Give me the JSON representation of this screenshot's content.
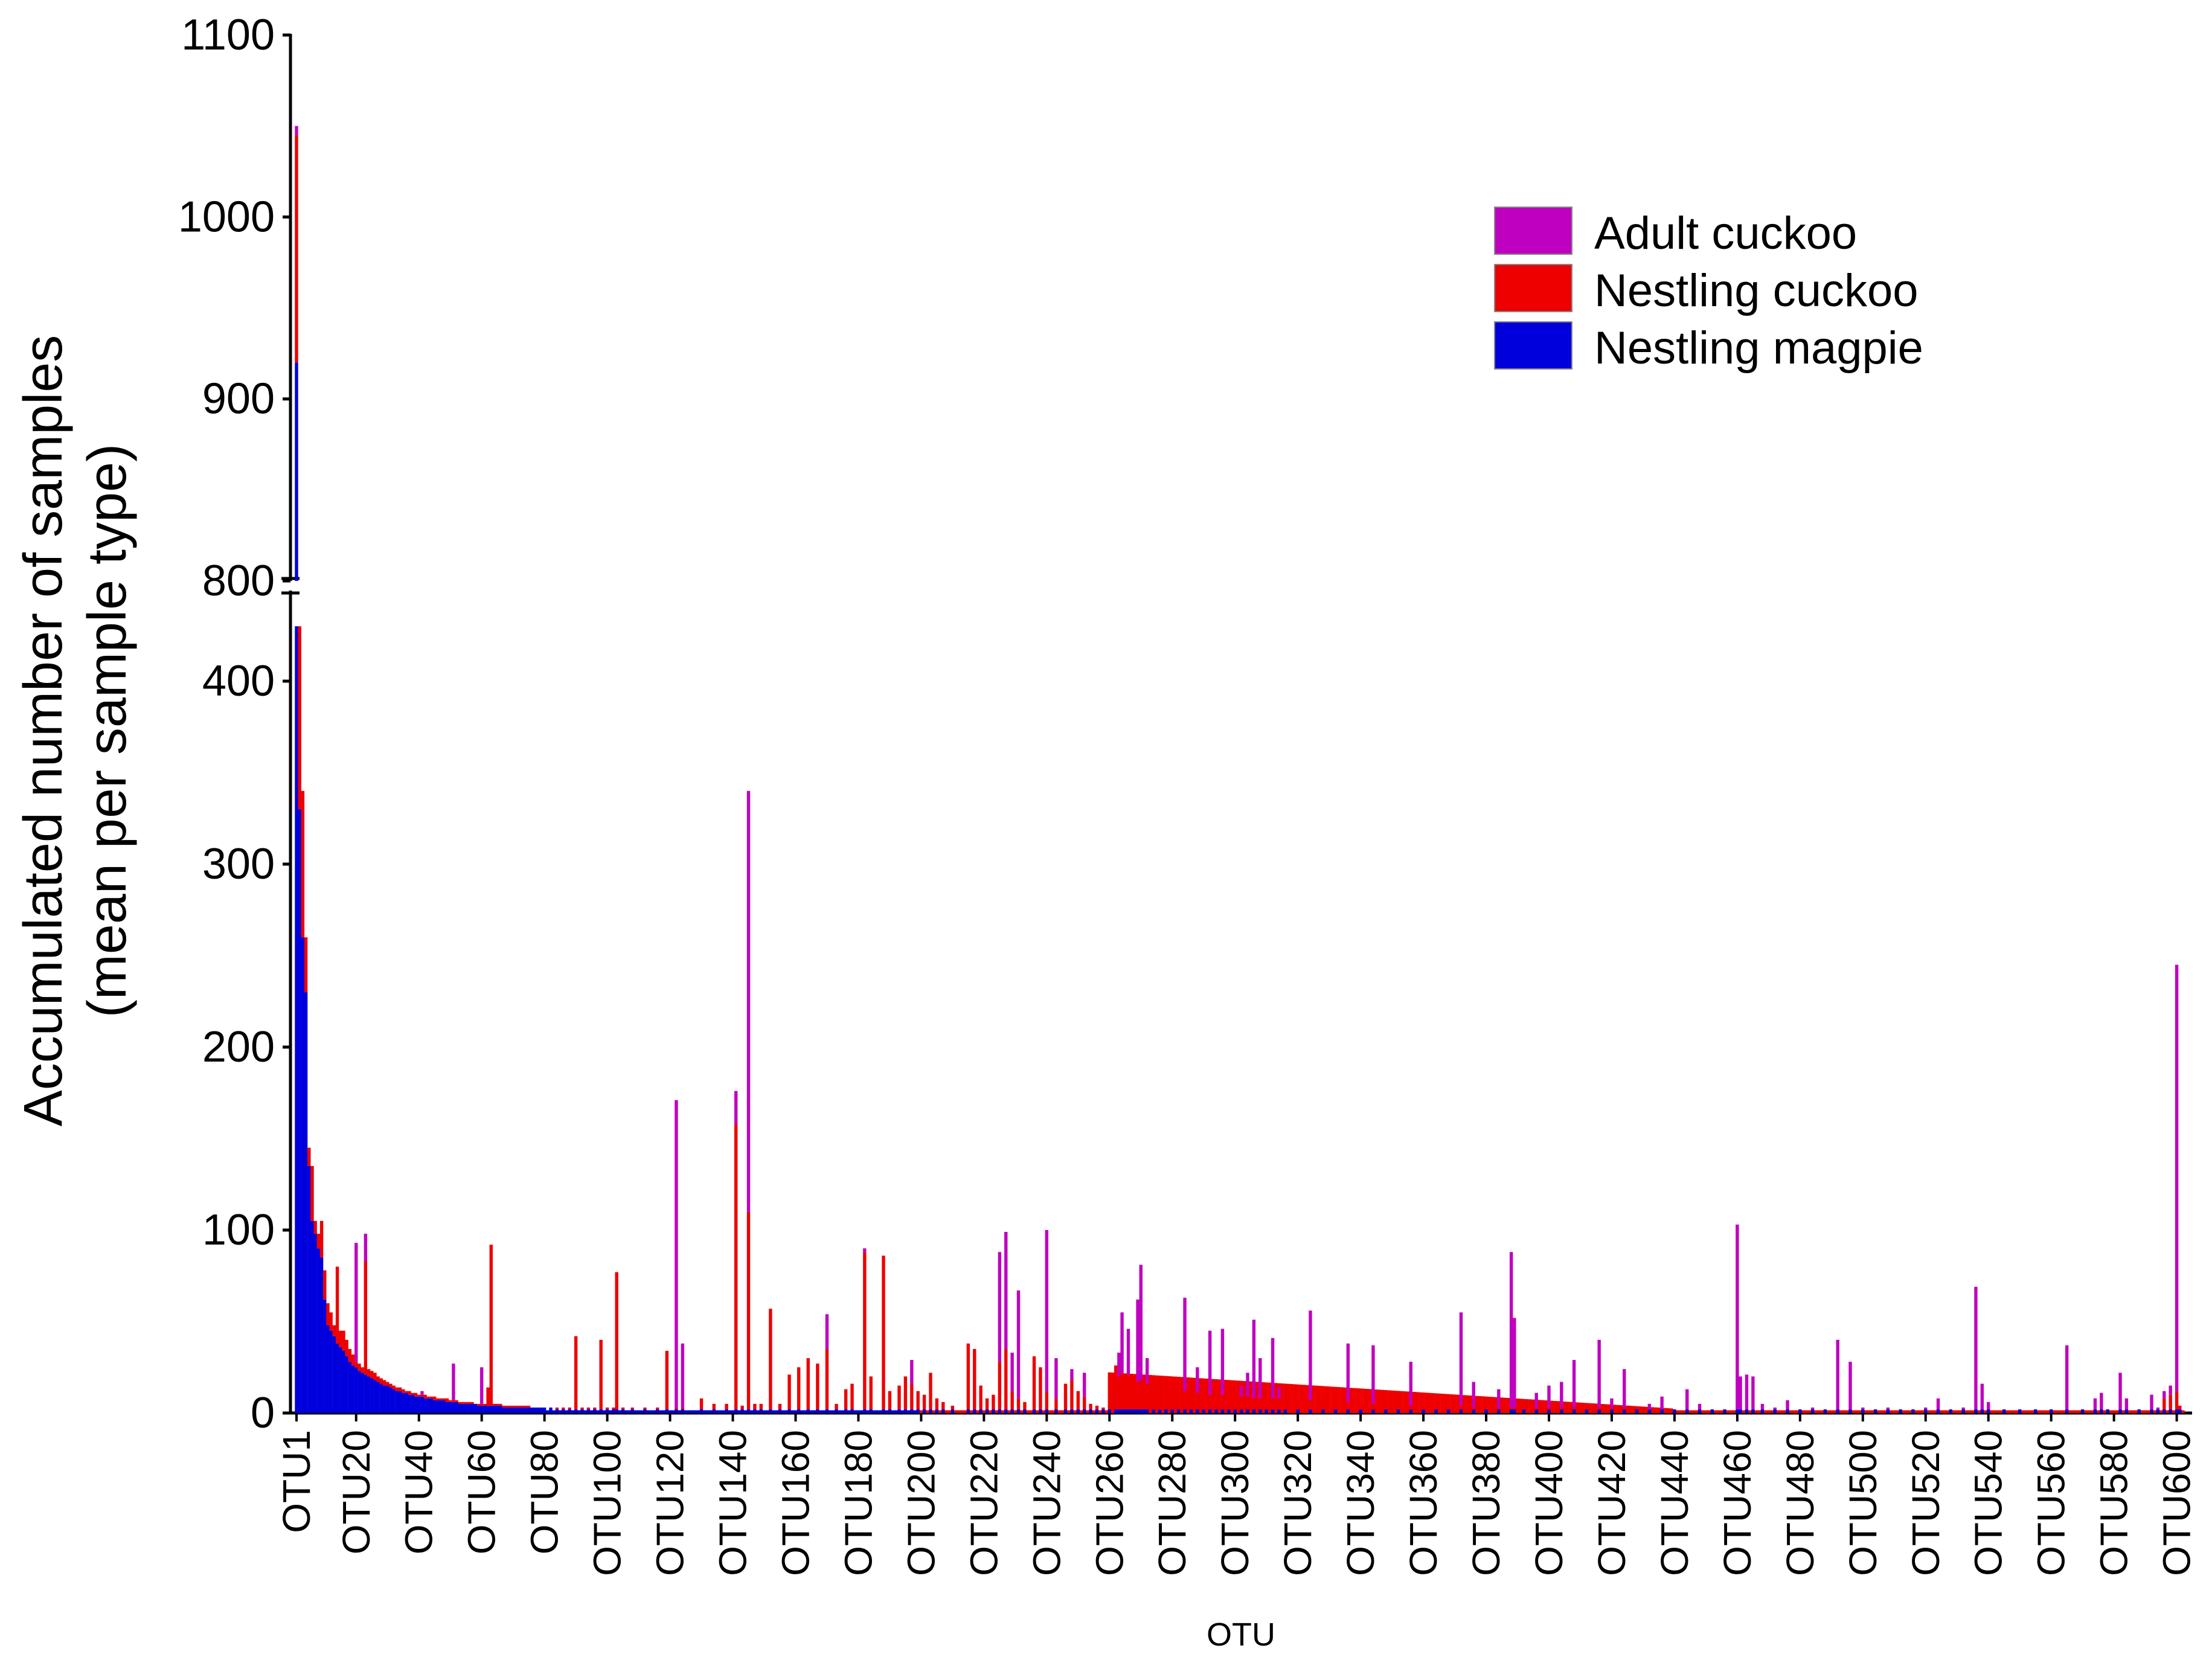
{
  "chart_data": {
    "type": "bar",
    "stacked": true,
    "broken_axis": true,
    "xlabel": "OTU",
    "ylabel_lines": [
      "Accumulated number of samples",
      "(mean per sample type)"
    ],
    "y_upper_ticks": [
      800,
      900,
      1000,
      1100
    ],
    "y_lower_ticks": [
      0,
      100,
      200,
      300,
      400
    ],
    "y_upper_range": [
      800,
      1100
    ],
    "y_lower_range": [
      0,
      430
    ],
    "n_otus": 602,
    "x_tick_labels": [
      "OTU1",
      "OTU20",
      "OTU40",
      "OTU60",
      "OTU80",
      "OTU100",
      "OTU120",
      "OTU140",
      "OTU160",
      "OTU180",
      "OTU200",
      "OTU220",
      "OTU240",
      "OTU260",
      "OTU280",
      "OTU300",
      "OTU320",
      "OTU340",
      "OTU360",
      "OTU380",
      "OTU400",
      "OTU420",
      "OTU440",
      "OTU460",
      "OTU480",
      "OTU500",
      "OTU520",
      "OTU540",
      "OTU560",
      "OTU580",
      "OTU600"
    ],
    "x_tick_positions": [
      1,
      20,
      40,
      60,
      80,
      100,
      120,
      140,
      160,
      180,
      200,
      220,
      240,
      260,
      280,
      300,
      320,
      340,
      360,
      380,
      400,
      420,
      440,
      460,
      480,
      500,
      520,
      540,
      560,
      580,
      600
    ],
    "series": [
      {
        "name": "Adult cuckoo",
        "color": "#C000C0"
      },
      {
        "name": "Nestling cuckoo",
        "color": "#EE0000"
      },
      {
        "name": "Nestling magpie",
        "color": "#0000DD"
      }
    ],
    "bars_note": "cumulative stacked top values [otu, magpie_top, nestling_cuckoo_top, adult_cuckoo_top]",
    "bars": [
      [
        1,
        920,
        1045,
        1050
      ],
      [
        2,
        330,
        430,
        430
      ],
      [
        3,
        260,
        340,
        340
      ],
      [
        4,
        230,
        260,
        260
      ],
      [
        5,
        135,
        145,
        145
      ],
      [
        6,
        105,
        135,
        135
      ],
      [
        7,
        98,
        105,
        105
      ],
      [
        8,
        90,
        98,
        98
      ],
      [
        9,
        85,
        105,
        105
      ],
      [
        10,
        62,
        78,
        78
      ],
      [
        11,
        48,
        60,
        60
      ],
      [
        12,
        45,
        55,
        55
      ],
      [
        13,
        42,
        48,
        48
      ],
      [
        14,
        38,
        80,
        80
      ],
      [
        15,
        36,
        45,
        45
      ],
      [
        16,
        34,
        45,
        45
      ],
      [
        17,
        31,
        40,
        40
      ],
      [
        18,
        28,
        35,
        35
      ],
      [
        19,
        26,
        32,
        32
      ],
      [
        20,
        25,
        28,
        93
      ],
      [
        21,
        23,
        27,
        27
      ],
      [
        22,
        22,
        25,
        25
      ],
      [
        23,
        21,
        83,
        98
      ],
      [
        24,
        20,
        24,
        24
      ],
      [
        25,
        19,
        23,
        23
      ],
      [
        26,
        18,
        22,
        22
      ],
      [
        27,
        17,
        20,
        20
      ],
      [
        28,
        16,
        19,
        19
      ],
      [
        29,
        15,
        18,
        18
      ],
      [
        30,
        15,
        17,
        17
      ],
      [
        31,
        14,
        16,
        16
      ],
      [
        32,
        13,
        15,
        15
      ],
      [
        33,
        12,
        14,
        14
      ],
      [
        34,
        12,
        14,
        14
      ],
      [
        35,
        11,
        13,
        13
      ],
      [
        36,
        11,
        12,
        12
      ],
      [
        37,
        10,
        12,
        12
      ],
      [
        38,
        10,
        11,
        11
      ],
      [
        39,
        9,
        11,
        11
      ],
      [
        40,
        9,
        10,
        10
      ],
      [
        41,
        9,
        10,
        12
      ],
      [
        42,
        8,
        10,
        10
      ],
      [
        43,
        8,
        9,
        9
      ],
      [
        44,
        8,
        9,
        9
      ],
      [
        45,
        7,
        9,
        9
      ],
      [
        46,
        7,
        8,
        8
      ],
      [
        47,
        7,
        8,
        8
      ],
      [
        48,
        7,
        8,
        8
      ],
      [
        49,
        6,
        8,
        8
      ],
      [
        50,
        6,
        7,
        7
      ],
      [
        51,
        6,
        7,
        27
      ],
      [
        52,
        6,
        7,
        7
      ],
      [
        53,
        5,
        6,
        6
      ],
      [
        54,
        5,
        6,
        6
      ],
      [
        55,
        5,
        6,
        6
      ],
      [
        56,
        5,
        6,
        6
      ],
      [
        57,
        5,
        6,
        6
      ],
      [
        58,
        5,
        5,
        5
      ],
      [
        59,
        4,
        5,
        5
      ],
      [
        60,
        4,
        5,
        25
      ],
      [
        61,
        4,
        5,
        5
      ],
      [
        62,
        4,
        14,
        14
      ],
      [
        63,
        4,
        92,
        92
      ],
      [
        64,
        4,
        5,
        5
      ],
      [
        65,
        4,
        5,
        5
      ],
      [
        66,
        4,
        5,
        5
      ],
      [
        67,
        3,
        4,
        4
      ],
      [
        68,
        3,
        4,
        4
      ],
      [
        69,
        3,
        4,
        4
      ],
      [
        70,
        3,
        4,
        4
      ],
      [
        71,
        3,
        4,
        4
      ],
      [
        72,
        3,
        4,
        4
      ],
      [
        73,
        3,
        4,
        4
      ],
      [
        74,
        3,
        4,
        4
      ],
      [
        75,
        3,
        4,
        4
      ],
      [
        76,
        3,
        3,
        3
      ],
      [
        77,
        3,
        3,
        3
      ],
      [
        78,
        3,
        3,
        3
      ],
      [
        79,
        3,
        3,
        3
      ],
      [
        80,
        3,
        3,
        3
      ],
      [
        82,
        3,
        3,
        3
      ],
      [
        84,
        2,
        3,
        3
      ],
      [
        86,
        2,
        3,
        3
      ],
      [
        88,
        2,
        3,
        3
      ],
      [
        90,
        2,
        42,
        42
      ],
      [
        92,
        2,
        3,
        3
      ],
      [
        94,
        2,
        3,
        3
      ],
      [
        96,
        2,
        3,
        3
      ],
      [
        98,
        2,
        40,
        40
      ],
      [
        100,
        2,
        3,
        3
      ],
      [
        102,
        2,
        3,
        3
      ],
      [
        103,
        2,
        77,
        77
      ],
      [
        105,
        2,
        3,
        3
      ],
      [
        108,
        2,
        3,
        3
      ],
      [
        112,
        2,
        3,
        3
      ],
      [
        116,
        2,
        3,
        3
      ],
      [
        119,
        2,
        34,
        34
      ],
      [
        122,
        2,
        3,
        171
      ],
      [
        124,
        2,
        3,
        38
      ],
      [
        130,
        2,
        8,
        8
      ],
      [
        134,
        2,
        5,
        5
      ],
      [
        138,
        2,
        5,
        5
      ],
      [
        141,
        2,
        158,
        176
      ],
      [
        143,
        2,
        4,
        4
      ],
      [
        145,
        2,
        110,
        340
      ],
      [
        147,
        2,
        5,
        5
      ],
      [
        149,
        2,
        5,
        5
      ],
      [
        152,
        2,
        57,
        57
      ],
      [
        155,
        2,
        5,
        5
      ],
      [
        158,
        2,
        21,
        21
      ],
      [
        161,
        2,
        25,
        25
      ],
      [
        164,
        2,
        30,
        30
      ],
      [
        167,
        2,
        27,
        27
      ],
      [
        170,
        2,
        35,
        54
      ],
      [
        173,
        2,
        5,
        5
      ],
      [
        176,
        2,
        13,
        13
      ],
      [
        178,
        2,
        16,
        16
      ],
      [
        182,
        2,
        88,
        90
      ],
      [
        184,
        2,
        20,
        20
      ],
      [
        188,
        2,
        86,
        86
      ],
      [
        190,
        2,
        12,
        12
      ],
      [
        193,
        2,
        15,
        15
      ],
      [
        195,
        2,
        20,
        20
      ],
      [
        197,
        2,
        16,
        29
      ],
      [
        199,
        2,
        12,
        12
      ],
      [
        201,
        2,
        10,
        10
      ],
      [
        203,
        2,
        22,
        22
      ],
      [
        205,
        2,
        8,
        8
      ],
      [
        207,
        2,
        6,
        6
      ],
      [
        210,
        2,
        4,
        4
      ],
      [
        215,
        2,
        38,
        38
      ],
      [
        217,
        2,
        35,
        35
      ],
      [
        219,
        2,
        15,
        15
      ],
      [
        221,
        2,
        8,
        8
      ],
      [
        223,
        2,
        10,
        10
      ],
      [
        225,
        2,
        28,
        88
      ],
      [
        227,
        2,
        35,
        99
      ],
      [
        229,
        2,
        12,
        33
      ],
      [
        231,
        2,
        8,
        67
      ],
      [
        233,
        2,
        6,
        6
      ],
      [
        236,
        2,
        31,
        31
      ],
      [
        238,
        2,
        25,
        25
      ],
      [
        240,
        2,
        12,
        100
      ],
      [
        243,
        2,
        8,
        30
      ],
      [
        246,
        2,
        16,
        16
      ],
      [
        248,
        2,
        18,
        24
      ],
      [
        250,
        2,
        12,
        12
      ],
      [
        252,
        2,
        9,
        22
      ],
      [
        254,
        2,
        5,
        5
      ],
      [
        256,
        2,
        4,
        4
      ],
      [
        258,
        2,
        3,
        3
      ],
      [
        260,
        2,
        4,
        4
      ],
      [
        262,
        2,
        26,
        26
      ],
      [
        263,
        2,
        20,
        33
      ],
      [
        264,
        2,
        22,
        55
      ],
      [
        265,
        2,
        20,
        20
      ],
      [
        266,
        2,
        21,
        46
      ],
      [
        267,
        2,
        19,
        19
      ],
      [
        268,
        2,
        18,
        18
      ],
      [
        269,
        2,
        17,
        62
      ],
      [
        270,
        2,
        18,
        81
      ],
      [
        271,
        2,
        16,
        16
      ],
      [
        272,
        2,
        16,
        30
      ],
      [
        274,
        2,
        15,
        15
      ],
      [
        276,
        2,
        14,
        14
      ],
      [
        278,
        2,
        14,
        14
      ],
      [
        280,
        2,
        13,
        13
      ],
      [
        282,
        2,
        13,
        13
      ],
      [
        284,
        2,
        12,
        63
      ],
      [
        286,
        2,
        12,
        12
      ],
      [
        288,
        2,
        11,
        25
      ],
      [
        290,
        2,
        11,
        11
      ],
      [
        292,
        2,
        10,
        45
      ],
      [
        294,
        2,
        10,
        10
      ],
      [
        296,
        2,
        10,
        46
      ],
      [
        298,
        2,
        9,
        9
      ],
      [
        300,
        2,
        9,
        9
      ],
      [
        302,
        2,
        9,
        15
      ],
      [
        304,
        2,
        9,
        22
      ],
      [
        306,
        2,
        8,
        51
      ],
      [
        308,
        2,
        8,
        30
      ],
      [
        310,
        2,
        8,
        8
      ],
      [
        312,
        2,
        8,
        41
      ],
      [
        314,
        2,
        8,
        14
      ],
      [
        316,
        2,
        7,
        7
      ],
      [
        320,
        2,
        7,
        7
      ],
      [
        324,
        2,
        7,
        56
      ],
      [
        328,
        2,
        6,
        6
      ],
      [
        332,
        2,
        6,
        6
      ],
      [
        336,
        2,
        6,
        38
      ],
      [
        340,
        2,
        5,
        5
      ],
      [
        344,
        2,
        5,
        37
      ],
      [
        348,
        2,
        5,
        5
      ],
      [
        352,
        2,
        5,
        5
      ],
      [
        356,
        2,
        4,
        28
      ],
      [
        360,
        2,
        4,
        4
      ],
      [
        364,
        2,
        4,
        4
      ],
      [
        368,
        2,
        4,
        4
      ],
      [
        372,
        2,
        4,
        55
      ],
      [
        376,
        2,
        3,
        17
      ],
      [
        380,
        2,
        3,
        3
      ],
      [
        384,
        2,
        3,
        13
      ],
      [
        388,
        2,
        3,
        88
      ],
      [
        389,
        2,
        3,
        52
      ],
      [
        392,
        2,
        3,
        3
      ],
      [
        396,
        2,
        3,
        11
      ],
      [
        400,
        2,
        3,
        15
      ],
      [
        404,
        2,
        3,
        17
      ],
      [
        408,
        2,
        3,
        29
      ],
      [
        412,
        2,
        3,
        3
      ],
      [
        416,
        2,
        3,
        40
      ],
      [
        420,
        2,
        3,
        8
      ],
      [
        424,
        2,
        3,
        24
      ],
      [
        428,
        2,
        2,
        2
      ],
      [
        432,
        2,
        2,
        5
      ],
      [
        436,
        2,
        2,
        9
      ],
      [
        440,
        2,
        2,
        2
      ],
      [
        444,
        2,
        2,
        13
      ],
      [
        448,
        2,
        2,
        5
      ],
      [
        452,
        2,
        2,
        2
      ],
      [
        456,
        2,
        2,
        2
      ],
      [
        460,
        2,
        2,
        103
      ],
      [
        461,
        2,
        2,
        20
      ],
      [
        463,
        2,
        2,
        21
      ],
      [
        465,
        2,
        2,
        20
      ],
      [
        468,
        2,
        2,
        5
      ],
      [
        472,
        2,
        2,
        3
      ],
      [
        476,
        2,
        2,
        7
      ],
      [
        480,
        2,
        2,
        2
      ],
      [
        484,
        2,
        2,
        3
      ],
      [
        488,
        2,
        2,
        2
      ],
      [
        492,
        2,
        2,
        40
      ],
      [
        496,
        2,
        2,
        28
      ],
      [
        500,
        2,
        2,
        3
      ],
      [
        504,
        2,
        2,
        2
      ],
      [
        508,
        2,
        2,
        3
      ],
      [
        512,
        2,
        2,
        2
      ],
      [
        516,
        2,
        2,
        2
      ],
      [
        520,
        2,
        2,
        3
      ],
      [
        524,
        2,
        2,
        8
      ],
      [
        528,
        2,
        2,
        2
      ],
      [
        532,
        2,
        2,
        3
      ],
      [
        536,
        2,
        2,
        69
      ],
      [
        538,
        2,
        2,
        16
      ],
      [
        540,
        2,
        2,
        6
      ],
      [
        545,
        2,
        2,
        2
      ],
      [
        550,
        2,
        2,
        2
      ],
      [
        555,
        2,
        2,
        2
      ],
      [
        560,
        2,
        2,
        2
      ],
      [
        565,
        2,
        2,
        37
      ],
      [
        570,
        2,
        2,
        2
      ],
      [
        574,
        2,
        2,
        8
      ],
      [
        576,
        2,
        2,
        11
      ],
      [
        578,
        2,
        2,
        2
      ],
      [
        582,
        2,
        2,
        22
      ],
      [
        584,
        2,
        2,
        8
      ],
      [
        588,
        2,
        2,
        2
      ],
      [
        592,
        2,
        2,
        10
      ],
      [
        594,
        2,
        2,
        3
      ],
      [
        596,
        2,
        8,
        12
      ],
      [
        598,
        2,
        10,
        15
      ],
      [
        600,
        2,
        12,
        245
      ],
      [
        601,
        2,
        4,
        4
      ]
    ],
    "legend_position": "top-right"
  }
}
